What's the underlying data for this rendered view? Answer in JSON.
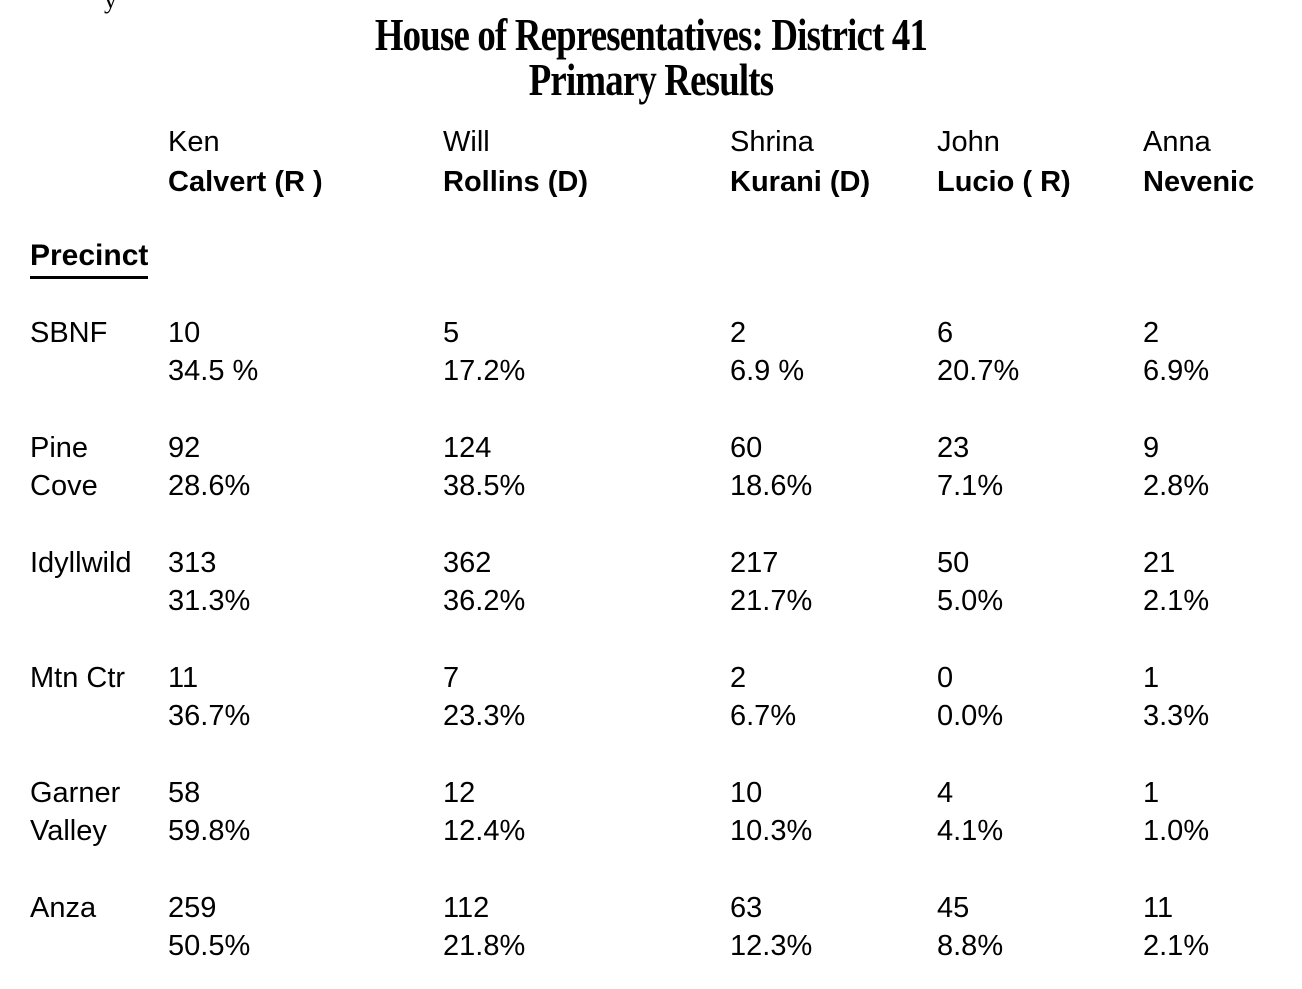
{
  "artifact_glyph": "y",
  "title": {
    "line1": "House of Representatives: District 41",
    "line2": "Primary Results"
  },
  "precinct_header": "Precinct",
  "candidates": [
    {
      "first": "Ken",
      "last": "Calvert (R )"
    },
    {
      "first": "Will",
      "last": "Rollins (D)"
    },
    {
      "first": "Shrina",
      "last": "Kurani (D)"
    },
    {
      "first": "John",
      "last": "Lucio ( R)"
    },
    {
      "first": "Anna",
      "last": "Nevenic"
    }
  ],
  "rows": [
    {
      "precinct_lines": [
        "SBNF"
      ],
      "results": [
        {
          "votes": "10",
          "pct": "34.5 %"
        },
        {
          "votes": "5",
          "pct": "17.2%"
        },
        {
          "votes": "2",
          "pct": "6.9 %"
        },
        {
          "votes": "6",
          "pct": "20.7%"
        },
        {
          "votes": "2",
          "pct": "6.9%"
        }
      ]
    },
    {
      "precinct_lines": [
        "Pine",
        "Cove"
      ],
      "results": [
        {
          "votes": "92",
          "pct": "28.6%"
        },
        {
          "votes": "124",
          "pct": "38.5%"
        },
        {
          "votes": "60",
          "pct": "18.6%"
        },
        {
          "votes": "23",
          "pct": "7.1%"
        },
        {
          "votes": "9",
          "pct": "2.8%"
        }
      ]
    },
    {
      "precinct_lines": [
        "Idyllwild"
      ],
      "results": [
        {
          "votes": "313",
          "pct": "31.3%"
        },
        {
          "votes": "362",
          "pct": "36.2%"
        },
        {
          "votes": "217",
          "pct": "21.7%"
        },
        {
          "votes": "50",
          "pct": "5.0%"
        },
        {
          "votes": "21",
          "pct": "2.1%"
        }
      ]
    },
    {
      "precinct_lines": [
        "Mtn Ctr"
      ],
      "results": [
        {
          "votes": "11",
          "pct": "36.7%"
        },
        {
          "votes": "7",
          "pct": "23.3%"
        },
        {
          "votes": "2",
          "pct": "6.7%"
        },
        {
          "votes": "0",
          "pct": "0.0%"
        },
        {
          "votes": "1",
          "pct": "3.3%"
        }
      ]
    },
    {
      "precinct_lines": [
        "Garner",
        "Valley"
      ],
      "results": [
        {
          "votes": "58",
          "pct": "59.8%"
        },
        {
          "votes": "12",
          "pct": "12.4%"
        },
        {
          "votes": "10",
          "pct": "10.3%"
        },
        {
          "votes": "4",
          "pct": "4.1%"
        },
        {
          "votes": "1",
          "pct": "1.0%"
        }
      ]
    },
    {
      "precinct_lines": [
        "Anza"
      ],
      "results": [
        {
          "votes": "259",
          "pct": "50.5%"
        },
        {
          "votes": "112",
          "pct": "21.8%"
        },
        {
          "votes": "63",
          "pct": "12.3%"
        },
        {
          "votes": "45",
          "pct": "8.8%"
        },
        {
          "votes": "11",
          "pct": "2.1%"
        }
      ]
    }
  ],
  "colors": {
    "text": "#000000",
    "background": "#ffffff"
  }
}
